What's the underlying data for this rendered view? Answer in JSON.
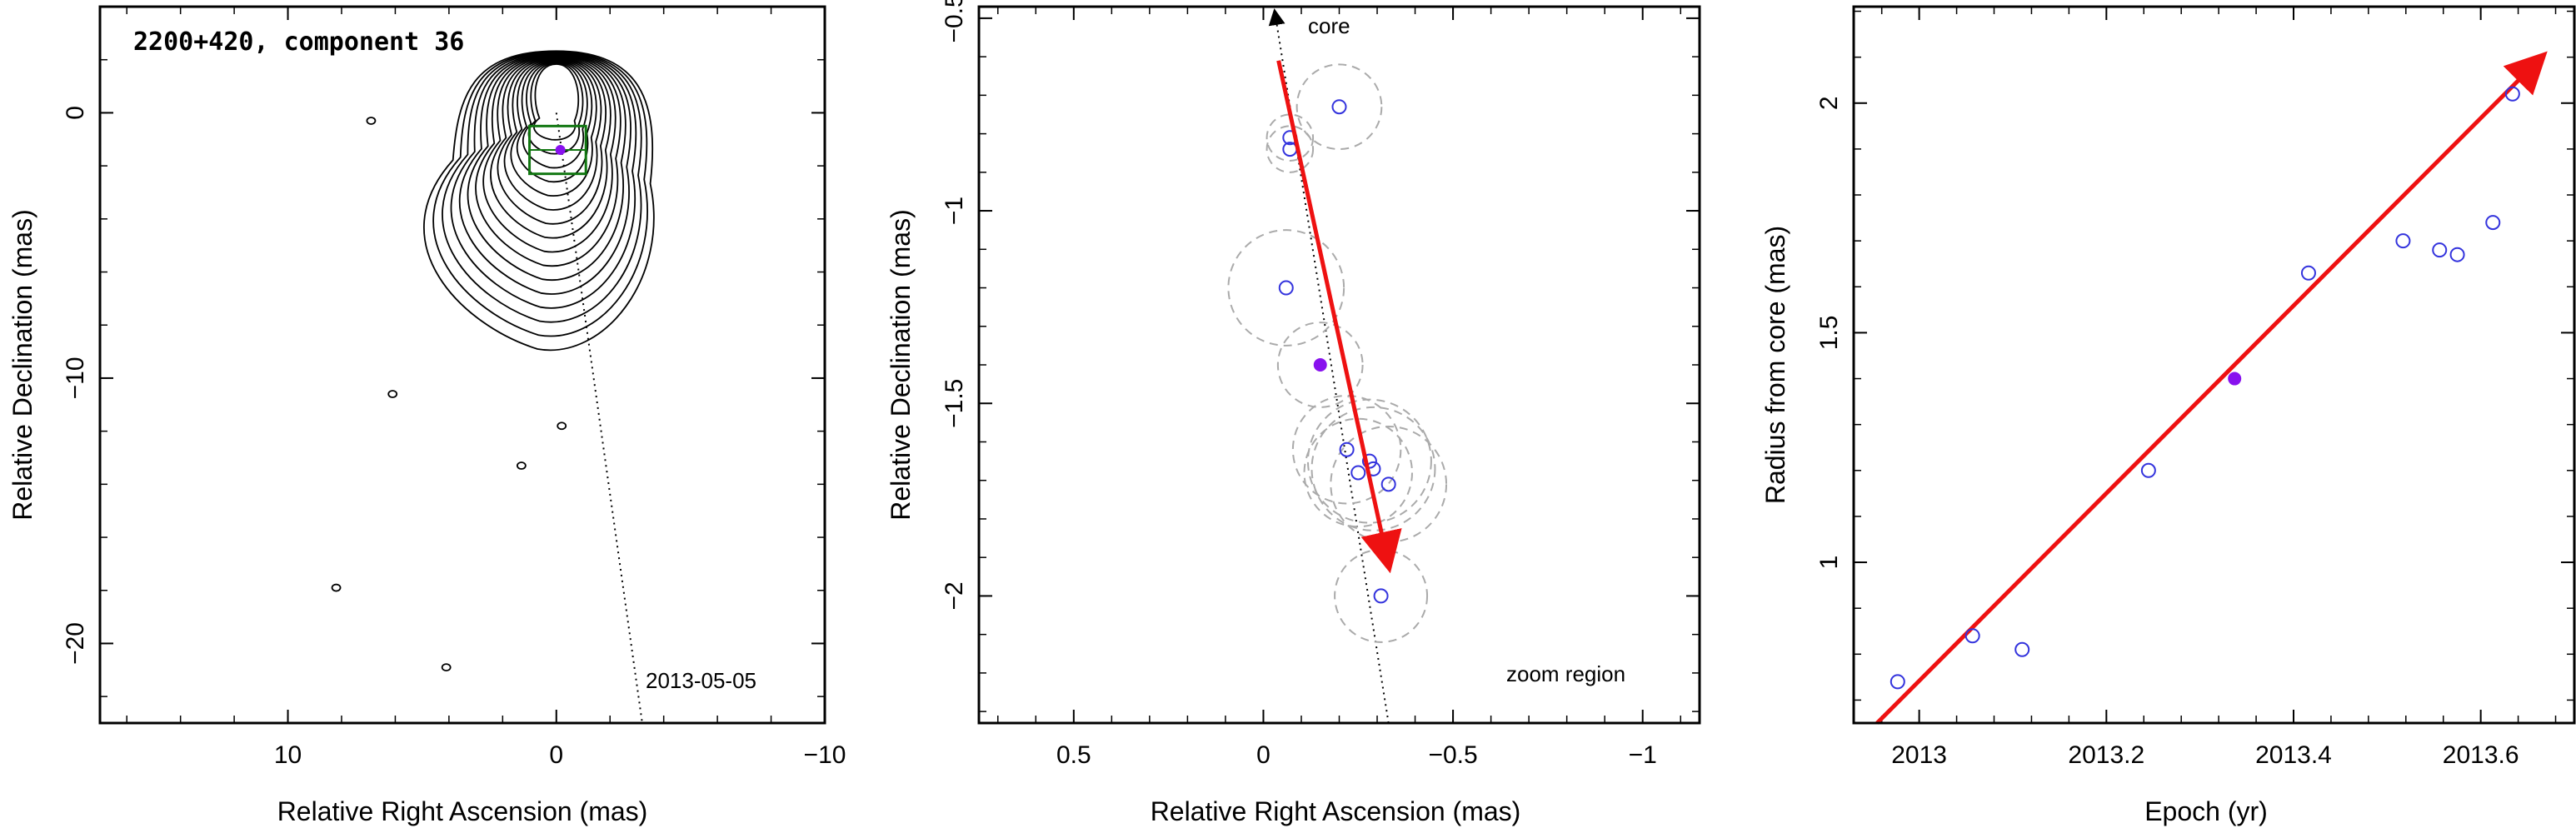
{
  "colors": {
    "axes": "#000000",
    "arrow": "#ee1111",
    "marker": "#3333dd",
    "marker_filled": "#8811ee",
    "circles": "#aaaaaa",
    "box": "#117711"
  },
  "chart_data": [
    {
      "type": "contour",
      "title": "2200+420, component 36",
      "annotation": "2013-05-05",
      "xlabel": "Relative Right Ascension (mas)",
      "ylabel": "Relative Declination (mas)",
      "xlim": [
        17,
        -10
      ],
      "ylim": [
        -23,
        4
      ],
      "xticks": [
        10,
        0,
        -10
      ],
      "yticks": [
        0,
        -10,
        -20
      ],
      "xtick_labels": [
        "10",
        "0",
        "−10"
      ],
      "ytick_labels": [
        "0",
        "−10",
        "−20"
      ],
      "component_position": [
        -0.15,
        -1.4
      ],
      "zoom_box": {
        "x_range": [
          1,
          -1.1
        ],
        "y_range": [
          -0.5,
          -2.3
        ]
      },
      "jet_axis": [
        [
          0,
          0
        ],
        [
          -3.2,
          -23
        ]
      ],
      "isolated_contours": [
        {
          "x": 6.9,
          "y": -0.3
        },
        {
          "x": 6.1,
          "y": -10.6
        },
        {
          "x": -0.2,
          "y": -11.8
        },
        {
          "x": 1.3,
          "y": -13.3
        },
        {
          "x": 8.2,
          "y": -17.9
        },
        {
          "x": 4.1,
          "y": -20.9
        }
      ]
    },
    {
      "type": "scatter",
      "annotation_top": "core",
      "annotation_bottom": "zoom region",
      "xlabel": "Relative Right Ascension (mas)",
      "ylabel": "Relative Declination (mas)",
      "xlim": [
        0.75,
        -1.15
      ],
      "ylim": [
        -2.33,
        -0.47
      ],
      "xticks": [
        0.5,
        0,
        -0.5,
        -1
      ],
      "yticks": [
        -0.5,
        -1,
        -1.5,
        -2
      ],
      "xtick_labels": [
        "0.5",
        "0",
        "−0.5",
        "−1"
      ],
      "ytick_labels": [
        "−0.5",
        "−1",
        "−1.5",
        "−2"
      ],
      "points": [
        {
          "x": -0.2,
          "y": -0.73,
          "r": 0.11
        },
        {
          "x": -0.07,
          "y": -0.81,
          "r": 0.06
        },
        {
          "x": -0.07,
          "y": -0.84,
          "r": 0.06
        },
        {
          "x": -0.06,
          "y": -1.2,
          "r": 0.15
        },
        {
          "x": -0.22,
          "y": -1.62,
          "r": 0.14
        },
        {
          "x": -0.25,
          "y": -1.68,
          "r": 0.14
        },
        {
          "x": -0.28,
          "y": -1.65,
          "r": 0.16
        },
        {
          "x": -0.29,
          "y": -1.67,
          "r": 0.16
        },
        {
          "x": -0.33,
          "y": -1.71,
          "r": 0.15
        },
        {
          "x": -0.31,
          "y": -2.0,
          "r": 0.12
        }
      ],
      "highlight_point": {
        "x": -0.15,
        "y": -1.4,
        "r": 0.11
      },
      "motion_vector": {
        "from": [
          -0.04,
          -0.61
        ],
        "to": [
          -0.33,
          -1.92
        ]
      },
      "jet_axis": {
        "from": [
          -0.33,
          -2.33
        ],
        "to": [
          -0.03,
          -0.47
        ]
      }
    },
    {
      "type": "scatter",
      "xlabel": "Epoch (yr)",
      "ylabel": "Radius from core (mas)",
      "xlim": [
        2012.93,
        2013.7
      ],
      "ylim": [
        0.65,
        2.21
      ],
      "xticks": [
        2013,
        2013.2,
        2013.4,
        2013.6
      ],
      "yticks": [
        1,
        1.5,
        2
      ],
      "xtick_labels": [
        "2013",
        "2013.2",
        "2013.4",
        "2013.6"
      ],
      "ytick_labels": [
        "1",
        "1.5",
        "2"
      ],
      "points": [
        {
          "x": 2012.977,
          "y": 0.74
        },
        {
          "x": 2013.057,
          "y": 0.84
        },
        {
          "x": 2013.11,
          "y": 0.81
        },
        {
          "x": 2013.245,
          "y": 1.2
        },
        {
          "x": 2013.416,
          "y": 1.63
        },
        {
          "x": 2013.517,
          "y": 1.7
        },
        {
          "x": 2013.556,
          "y": 1.68
        },
        {
          "x": 2013.575,
          "y": 1.67
        },
        {
          "x": 2013.613,
          "y": 1.74
        },
        {
          "x": 2013.634,
          "y": 2.02
        }
      ],
      "highlight_point": {
        "x": 2013.337,
        "y": 1.4
      },
      "fit_line": {
        "from": [
          2012.955,
          0.65
        ],
        "to": [
          2013.665,
          2.1
        ]
      }
    }
  ]
}
